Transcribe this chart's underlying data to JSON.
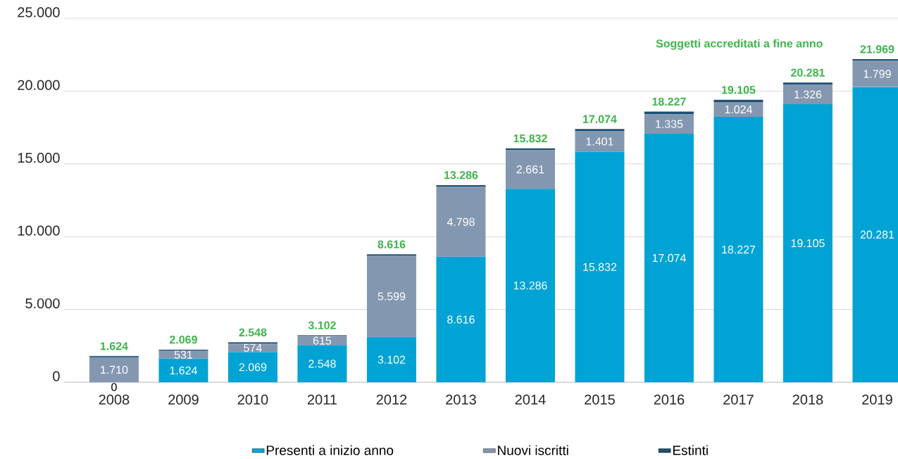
{
  "chart_data": {
    "type": "bar",
    "stacked": true,
    "categories": [
      "2008",
      "2009",
      "2010",
      "2011",
      "2012",
      "2013",
      "2014",
      "2015",
      "2016",
      "2017",
      "2018",
      "2019"
    ],
    "series": [
      {
        "name": "Presenti a inizio anno",
        "color": "#00a3d4",
        "values": [
          0,
          1624,
          2069,
          2548,
          3102,
          8616,
          13286,
          15832,
          17074,
          18227,
          19105,
          20281
        ],
        "value_labels": [
          "0",
          "1.624",
          "2.069",
          "2.548",
          "3.102",
          "8.616",
          "13.286",
          "15.832",
          "17.074",
          "18.227",
          "19.105",
          "20.281"
        ]
      },
      {
        "name": "Nuovi iscritti",
        "color": "#8497b0",
        "values": [
          1710,
          531,
          574,
          615,
          5599,
          4798,
          2661,
          1401,
          1335,
          1024,
          1326,
          1799
        ],
        "value_labels": [
          "1.710",
          "531",
          "574",
          "615",
          "5.599",
          "4.798",
          "2.661",
          "1.401",
          "1.335",
          "1.024",
          "1.326",
          "1.799"
        ]
      },
      {
        "name": "Estinti",
        "color": "#1d4e74",
        "values": [
          86,
          86,
          95,
          61,
          85,
          128,
          115,
          159,
          182,
          146,
          150,
          111
        ]
      }
    ],
    "annotations": [
      "Soggetti accreditati a fine anno",
      "1.624",
      "2.069",
      "2.548",
      "3.102",
      "8.616",
      "13.286",
      "15.832",
      "17.074",
      "18.227",
      "19.105",
      "20.281",
      "21.969"
    ],
    "ylim": [
      0,
      25000
    ],
    "yticks": [
      {
        "value": 0,
        "label": "0"
      },
      {
        "value": 5000,
        "label": "5.000"
      },
      {
        "value": 10000,
        "label": "10.000"
      },
      {
        "value": 15000,
        "label": "15.000"
      },
      {
        "value": 20000,
        "label": "20.000"
      },
      {
        "value": 25000,
        "label": "25.000"
      }
    ],
    "grid": "y",
    "legend": "bottom"
  }
}
